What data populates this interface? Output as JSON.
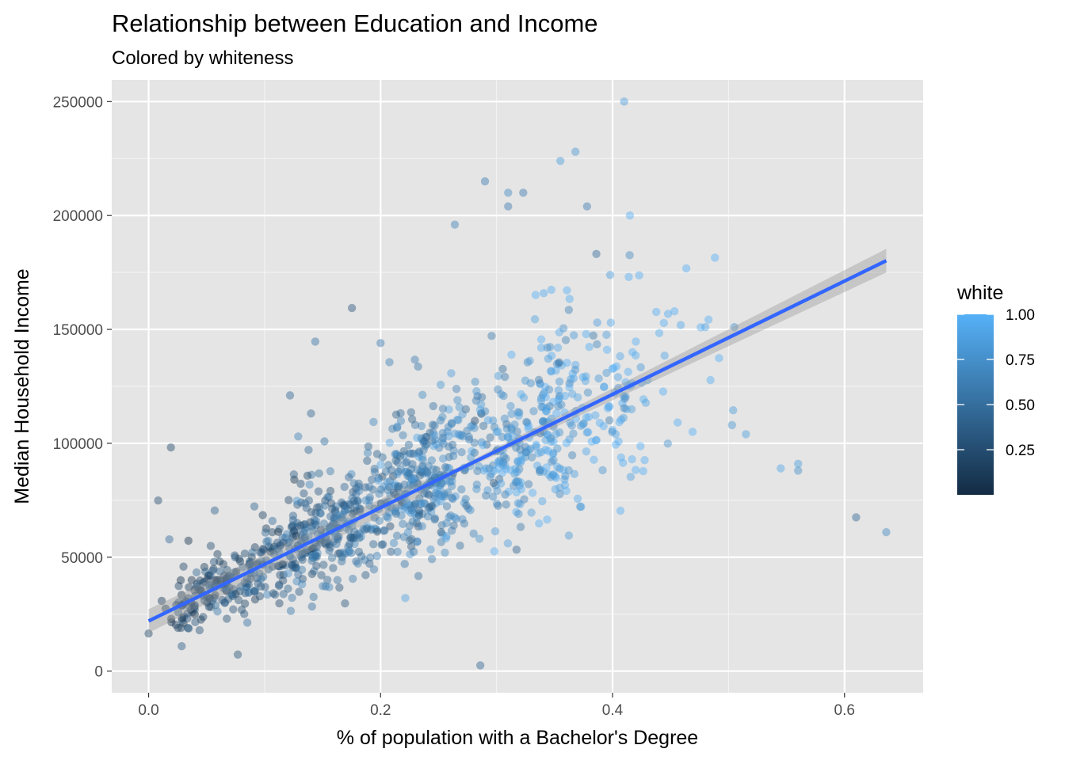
{
  "chart_data": {
    "type": "scatter",
    "title": "Relationship between Education and Income",
    "subtitle": "Colored by whiteness",
    "xlabel": "% of population with a Bachelor's Degree",
    "ylabel": "Median Household Income",
    "xlim": [
      -0.0318,
      0.6678
    ],
    "ylim": [
      -9500,
      259500
    ],
    "x_ticks": [
      0.0,
      0.2,
      0.4,
      0.6
    ],
    "x_tick_labels": [
      "0.0",
      "0.2",
      "0.4",
      "0.6"
    ],
    "y_ticks": [
      0,
      50000,
      100000,
      150000,
      200000,
      250000
    ],
    "y_tick_labels": [
      "0",
      "50000",
      "100000",
      "150000",
      "200000",
      "250000"
    ],
    "grid": true,
    "panel_background": "#e5e5e5",
    "legend": {
      "title": "white",
      "placement": "right",
      "range": [
        0.0,
        1.0
      ],
      "breaks": [
        0.25,
        0.5,
        0.75,
        1.0
      ],
      "break_labels": [
        "0.25",
        "0.50",
        "0.75",
        "1.00"
      ],
      "low_color": "#132b43",
      "high_color": "#56b1f7"
    },
    "point_alpha": 0.45,
    "regression": {
      "method": "lm",
      "line_color": "#3366ff",
      "ribbon_color": "#999999",
      "x_range": [
        0.0,
        0.636
      ],
      "intercept": 22000,
      "slope": 248700,
      "se_at_start": 2600,
      "se_at_mean": 900,
      "se_at_end": 5200
    },
    "points_summary": {
      "count": 1200,
      "notable_points": [
        {
          "x": 0.41,
          "y": 250000,
          "white": 0.85
        },
        {
          "x": 0.368,
          "y": 228000,
          "white": 0.8
        },
        {
          "x": 0.355,
          "y": 224000,
          "white": 0.85
        },
        {
          "x": 0.29,
          "y": 215000,
          "white": 0.6
        },
        {
          "x": 0.31,
          "y": 210000,
          "white": 0.7
        },
        {
          "x": 0.323,
          "y": 210000,
          "white": 0.6
        },
        {
          "x": 0.31,
          "y": 204000,
          "white": 0.6
        },
        {
          "x": 0.378,
          "y": 204000,
          "white": 0.6
        },
        {
          "x": 0.61,
          "y": 67500,
          "white": 0.45
        },
        {
          "x": 0.636,
          "y": 61000,
          "white": 0.7
        },
        {
          "x": 0.56,
          "y": 91000,
          "white": 0.85
        },
        {
          "x": 0.545,
          "y": 89000,
          "white": 0.9
        },
        {
          "x": 0.56,
          "y": 88000,
          "white": 0.75
        },
        {
          "x": 0.504,
          "y": 114500,
          "white": 0.85
        },
        {
          "x": 0.515,
          "y": 104000,
          "white": 0.85
        },
        {
          "x": 0.503,
          "y": 108000,
          "white": 0.8
        },
        {
          "x": 0.48,
          "y": 151000,
          "white": 0.9
        },
        {
          "x": 0.505,
          "y": 151000,
          "white": 0.75
        },
        {
          "x": 0.286,
          "y": 2500,
          "white": 0.45
        },
        {
          "x": 0.0,
          "y": 16500,
          "white": 0.2
        },
        {
          "x": 0.057,
          "y": 70500,
          "white": 0.4
        },
        {
          "x": 0.2,
          "y": 144000,
          "white": 0.6
        },
        {
          "x": 0.264,
          "y": 196000,
          "white": 0.65
        },
        {
          "x": 0.129,
          "y": 103000,
          "white": 0.65
        }
      ]
    }
  }
}
